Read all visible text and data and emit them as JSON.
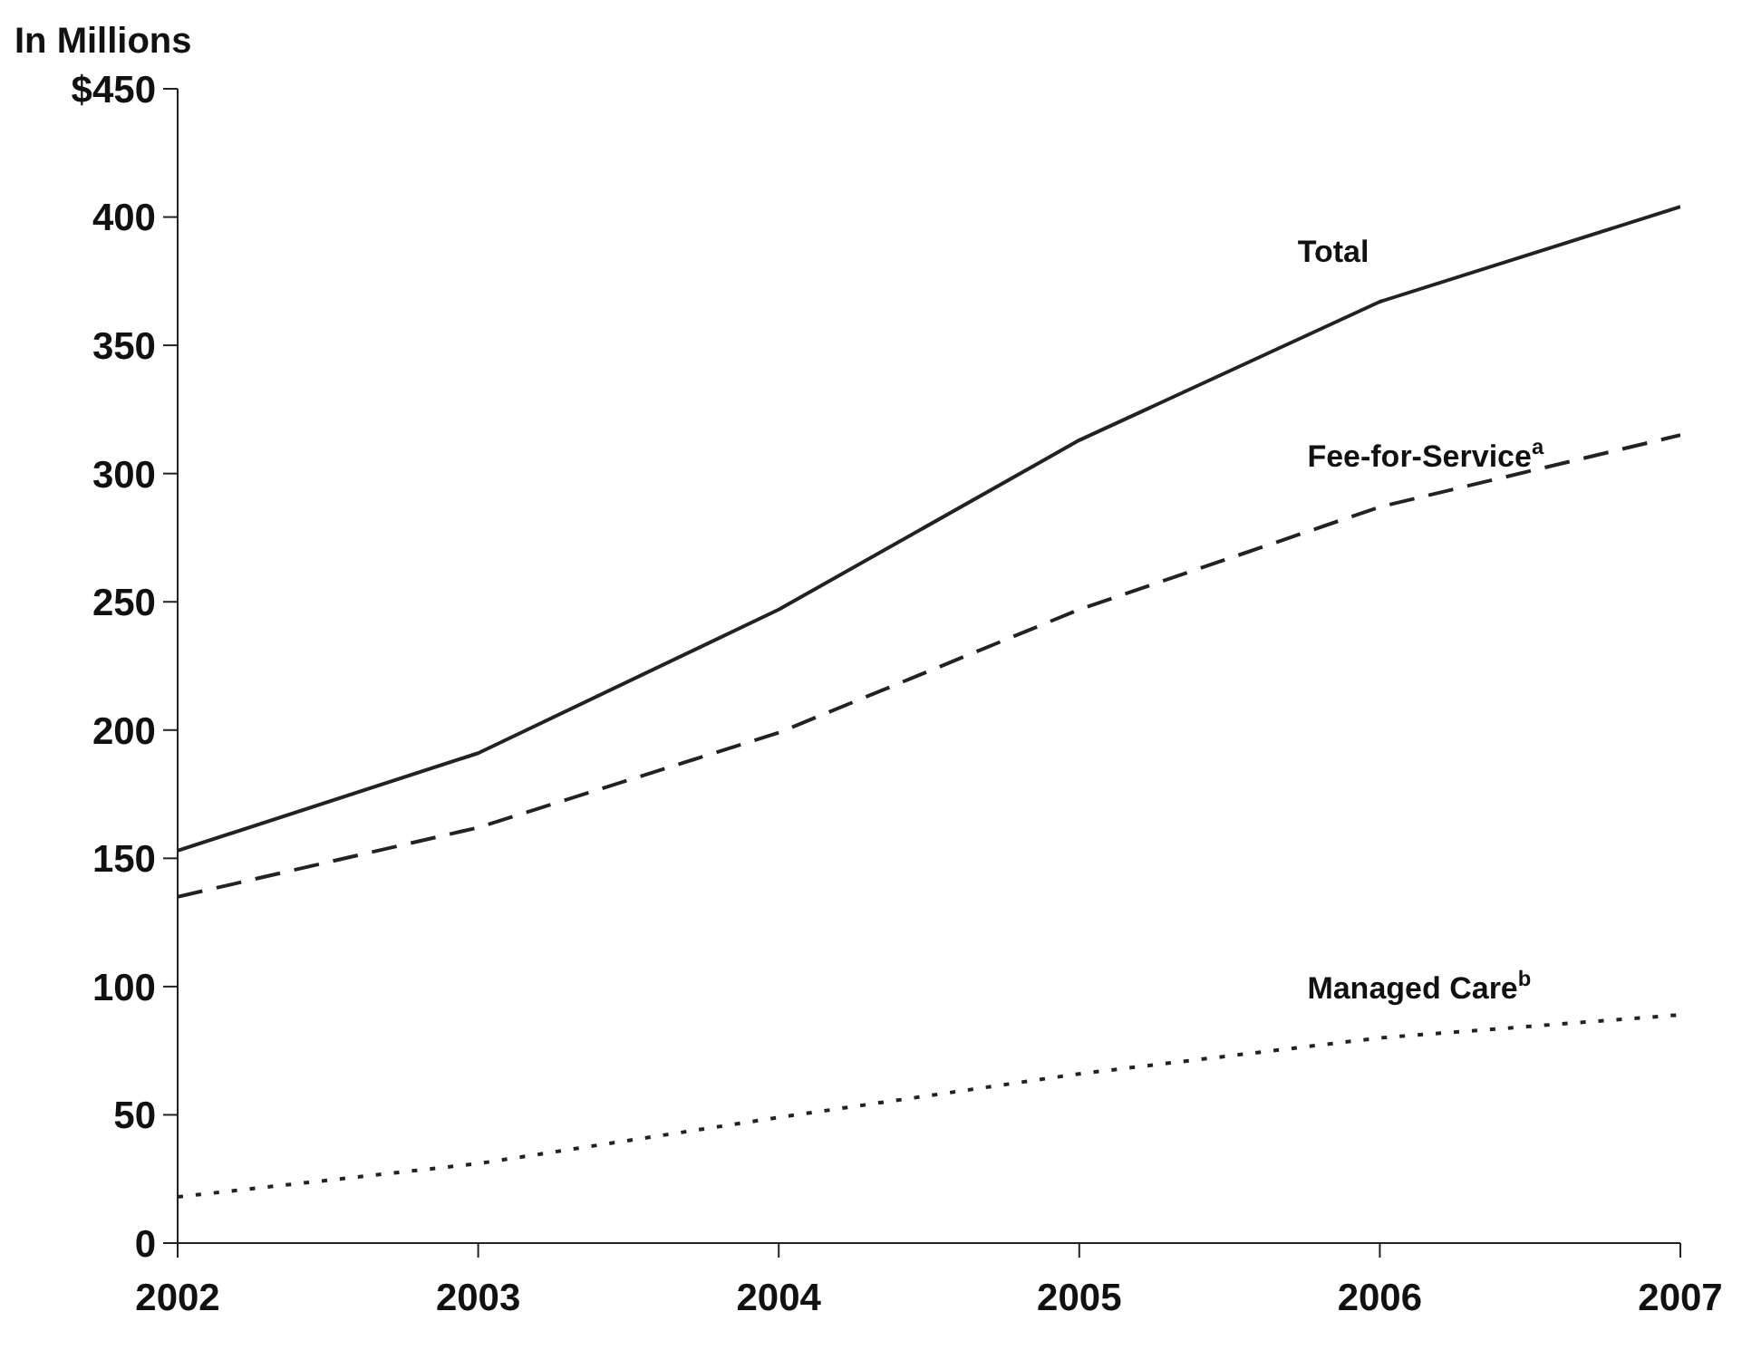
{
  "chart_data": {
    "type": "line",
    "ylabel": "In Millions",
    "x": [
      2002,
      2003,
      2004,
      2005,
      2006,
      2007
    ],
    "xlim": [
      2002,
      2007
    ],
    "xticks": [
      2002,
      2003,
      2004,
      2005,
      2006,
      2007
    ],
    "ylim": [
      0,
      450
    ],
    "yticks": [
      0,
      50,
      100,
      150,
      200,
      250,
      300,
      350,
      400,
      {
        "value": 450,
        "label": "$450"
      }
    ],
    "grid": false,
    "legend": false,
    "series": [
      {
        "name": "Total",
        "color": "#222222",
        "line_style": "solid",
        "values": [
          153,
          191,
          247,
          313,
          367,
          404
        ]
      },
      {
        "name": "Fee-for-Service$^{a}$",
        "color": "#222222",
        "line_style": "dashed",
        "values": [
          135,
          162,
          199,
          247,
          287,
          315
        ]
      },
      {
        "name": "Managed Care$^{b}$",
        "color": "#222222",
        "line_style": "dotted",
        "values": [
          18,
          31,
          49,
          66,
          80,
          89
        ]
      }
    ]
  }
}
